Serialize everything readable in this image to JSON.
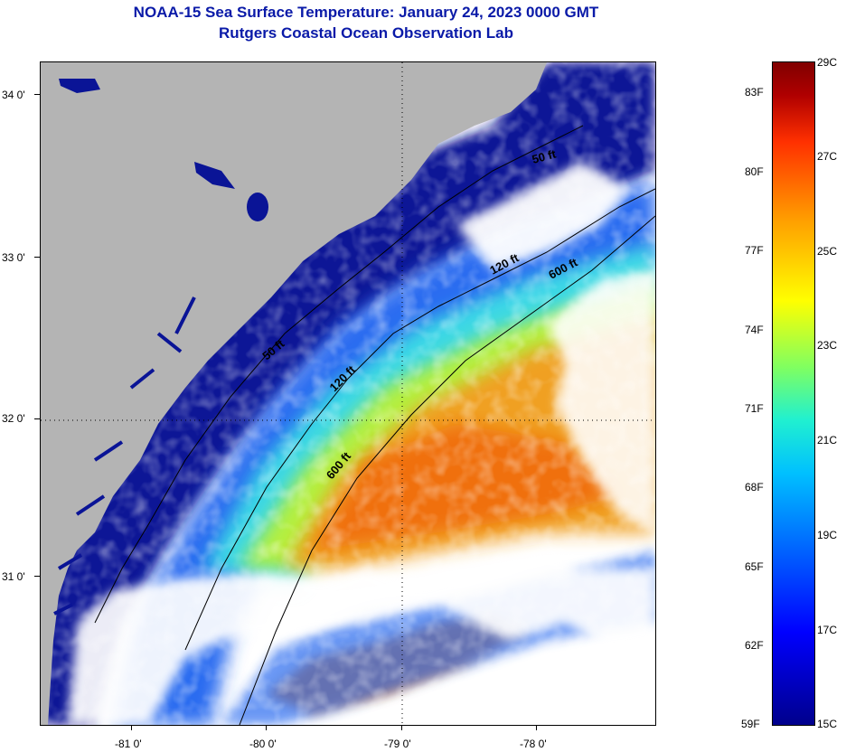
{
  "title": {
    "line1": "NOAA-15 Sea Surface Temperature:  January 24, 2023 0000 GMT",
    "line2": "Rutgers Coastal Ocean Observation Lab"
  },
  "map": {
    "lat_ticks": [
      "34 0'",
      "33 0'",
      "32 0'",
      "31 0'"
    ],
    "lon_ticks": [
      "-81 0'",
      "-80 0'",
      "-79 0'",
      "-78 0'"
    ],
    "contours": [
      {
        "label": "50 ft"
      },
      {
        "label": "50 ft"
      },
      {
        "label": "120 ft"
      },
      {
        "label": "120 ft"
      },
      {
        "label": "600 ft"
      },
      {
        "label": "600 ft"
      }
    ],
    "colors": {
      "land": "#b4b4b4",
      "cloud": "#ffffff",
      "coastal_cold": "#0a1496",
      "shelf": "#2a6cf0",
      "mid_shelf": "#3ad8e6",
      "outer_shelf": "#b4f040",
      "gulf_stream": "#f0a020",
      "warm_core": "#f07010"
    }
  },
  "colorbar": {
    "celsius_labels": [
      "29C",
      "27C",
      "25C",
      "23C",
      "21C",
      "19C",
      "17C",
      "15C"
    ],
    "fahrenheit_labels": [
      "83F",
      "80F",
      "77F",
      "74F",
      "71F",
      "68F",
      "65F",
      "62F",
      "59F"
    ],
    "range_c": [
      15,
      29
    ],
    "range_f": [
      59,
      84.2
    ]
  }
}
